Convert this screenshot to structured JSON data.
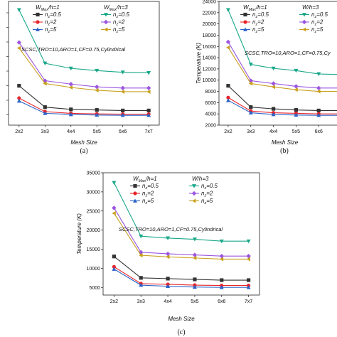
{
  "chart_data": [
    {
      "type": "line",
      "panel_caption": "(a)",
      "title": "",
      "xlabel": "Mesh Size",
      "ylabel": "",
      "categories": [
        "2x2",
        "3x3",
        "4x4",
        "5x5",
        "6x6",
        "7x7"
      ],
      "ylim": [
        2000,
        24000
      ],
      "yticks": [],
      "grid": false,
      "annotation": "SCSC,TRO=10,ARO=1,CF=0.75,Cylindrical",
      "legend": {
        "placement": "top-right",
        "group_titles": [
          {
            "prefix": "W",
            "sub": "Max",
            "suffix": "/h=1"
          },
          {
            "prefix": "W",
            "sub": "Max",
            "suffix": "/h=3"
          }
        ]
      },
      "series": [
        {
          "name": "n=0.5",
          "group": 0,
          "color": "#333333",
          "marker": "square",
          "values": [
            9000,
            5200,
            4800,
            4700,
            4600,
            4600
          ]
        },
        {
          "name": "n=2",
          "group": 0,
          "color": "#e8262b",
          "marker": "circle",
          "values": [
            6800,
            4400,
            4100,
            4000,
            3950,
            3950
          ]
        },
        {
          "name": "n=5",
          "group": 0,
          "color": "#2a63c9",
          "marker": "triangle-up",
          "values": [
            6300,
            4100,
            3900,
            3800,
            3750,
            3750
          ]
        },
        {
          "name": "n=0.5",
          "group": 1,
          "color": "#1aa88a",
          "marker": "triangle-down",
          "values": [
            22500,
            13000,
            12100,
            11700,
            11400,
            11300
          ]
        },
        {
          "name": "n=2",
          "group": 1,
          "color": "#9b55e0",
          "marker": "diamond",
          "values": [
            16700,
            9900,
            9300,
            8800,
            8600,
            8600
          ]
        },
        {
          "name": "n=5",
          "group": 1,
          "color": "#c9a11f",
          "marker": "triangle-left",
          "values": [
            15700,
            9400,
            8700,
            8200,
            7950,
            7950
          ]
        }
      ]
    },
    {
      "type": "line",
      "panel_caption": "(b)",
      "title": "",
      "xlabel": "Mesh Size",
      "ylabel": "Temperature (K)",
      "categories": [
        "2x2",
        "3x3",
        "4x4",
        "5x5",
        "6x6",
        "7x7"
      ],
      "ylim": [
        2000,
        24000
      ],
      "yticks": [
        "2000",
        "4000",
        "6000",
        "8000",
        "10000",
        "12000",
        "14000",
        "16000",
        "18000",
        "20000",
        "22000",
        "24000"
      ],
      "grid": false,
      "annotation": "SCSC,TRO=10,ARO=1,CF=0.75,Cy",
      "legend": {
        "placement": "top-right",
        "group_titles": [
          {
            "prefix": "W",
            "sub": "Max",
            "suffix": "/h=1"
          },
          {
            "prefix": "W/h=3",
            "sub": "",
            "suffix": ""
          }
        ]
      },
      "series": [
        {
          "name": "n=0.5",
          "group": 0,
          "color": "#333333",
          "marker": "square",
          "values": [
            9000,
            5200,
            4900,
            4700,
            4600,
            4600
          ]
        },
        {
          "name": "n=2",
          "group": 0,
          "color": "#e8262b",
          "marker": "circle",
          "values": [
            6900,
            4500,
            4200,
            4100,
            4000,
            4000
          ]
        },
        {
          "name": "n=5",
          "group": 0,
          "color": "#2a63c9",
          "marker": "triangle-up",
          "values": [
            6400,
            4200,
            3900,
            3800,
            3750,
            3750
          ]
        },
        {
          "name": "n=0.5",
          "group": 1,
          "color": "#1aa88a",
          "marker": "triangle-down",
          "values": [
            22500,
            12800,
            12100,
            11700,
            11100,
            11000
          ]
        },
        {
          "name": "n=2",
          "group": 1,
          "color": "#9b55e0",
          "marker": "diamond",
          "values": [
            16800,
            9900,
            9400,
            8900,
            8600,
            8600
          ]
        },
        {
          "name": "n=5",
          "group": 1,
          "color": "#c9a11f",
          "marker": "triangle-left",
          "values": [
            15800,
            9400,
            8800,
            8300,
            8000,
            8000
          ]
        }
      ]
    },
    {
      "type": "line",
      "panel_caption": "(c)",
      "title": "",
      "xlabel": "Mesh Size",
      "ylabel": "Temperature (K)",
      "categories": [
        "2x2",
        "3x3",
        "4x4",
        "5x5",
        "6x6",
        "7x7"
      ],
      "ylim": [
        3000,
        35000
      ],
      "yticks": [
        "5000",
        "10000",
        "15000",
        "20000",
        "25000",
        "30000",
        "35000"
      ],
      "grid": false,
      "annotation": "SCSC,TRO=10,ARO=1,CF=0.75,Cylindrical",
      "legend": {
        "placement": "top-right",
        "group_titles": [
          {
            "prefix": "W",
            "sub": "Max",
            "suffix": "/h=1"
          },
          {
            "prefix": "W/h=3",
            "sub": "",
            "suffix": ""
          }
        ]
      },
      "series": [
        {
          "name": "n=0.5",
          "group": 0,
          "color": "#333333",
          "marker": "square",
          "values": [
            13100,
            7500,
            7300,
            7100,
            6900,
            6900
          ]
        },
        {
          "name": "n=2",
          "group": 0,
          "color": "#e8262b",
          "marker": "circle",
          "values": [
            10400,
            6000,
            5800,
            5600,
            5500,
            5500
          ]
        },
        {
          "name": "n=5",
          "group": 0,
          "color": "#2a63c9",
          "marker": "triangle-up",
          "values": [
            9800,
            5600,
            5300,
            5100,
            5000,
            5000
          ]
        },
        {
          "name": "n=0.5",
          "group": 1,
          "color": "#1aa88a",
          "marker": "triangle-down",
          "values": [
            32400,
            18400,
            17900,
            17600,
            17100,
            17100
          ]
        },
        {
          "name": "n=2",
          "group": 1,
          "color": "#9b55e0",
          "marker": "diamond",
          "values": [
            25800,
            14200,
            13800,
            13500,
            13200,
            13200
          ]
        },
        {
          "name": "n=5",
          "group": 1,
          "color": "#c9a11f",
          "marker": "triangle-left",
          "values": [
            24400,
            13400,
            13000,
            12700,
            12400,
            12400
          ]
        }
      ]
    }
  ]
}
